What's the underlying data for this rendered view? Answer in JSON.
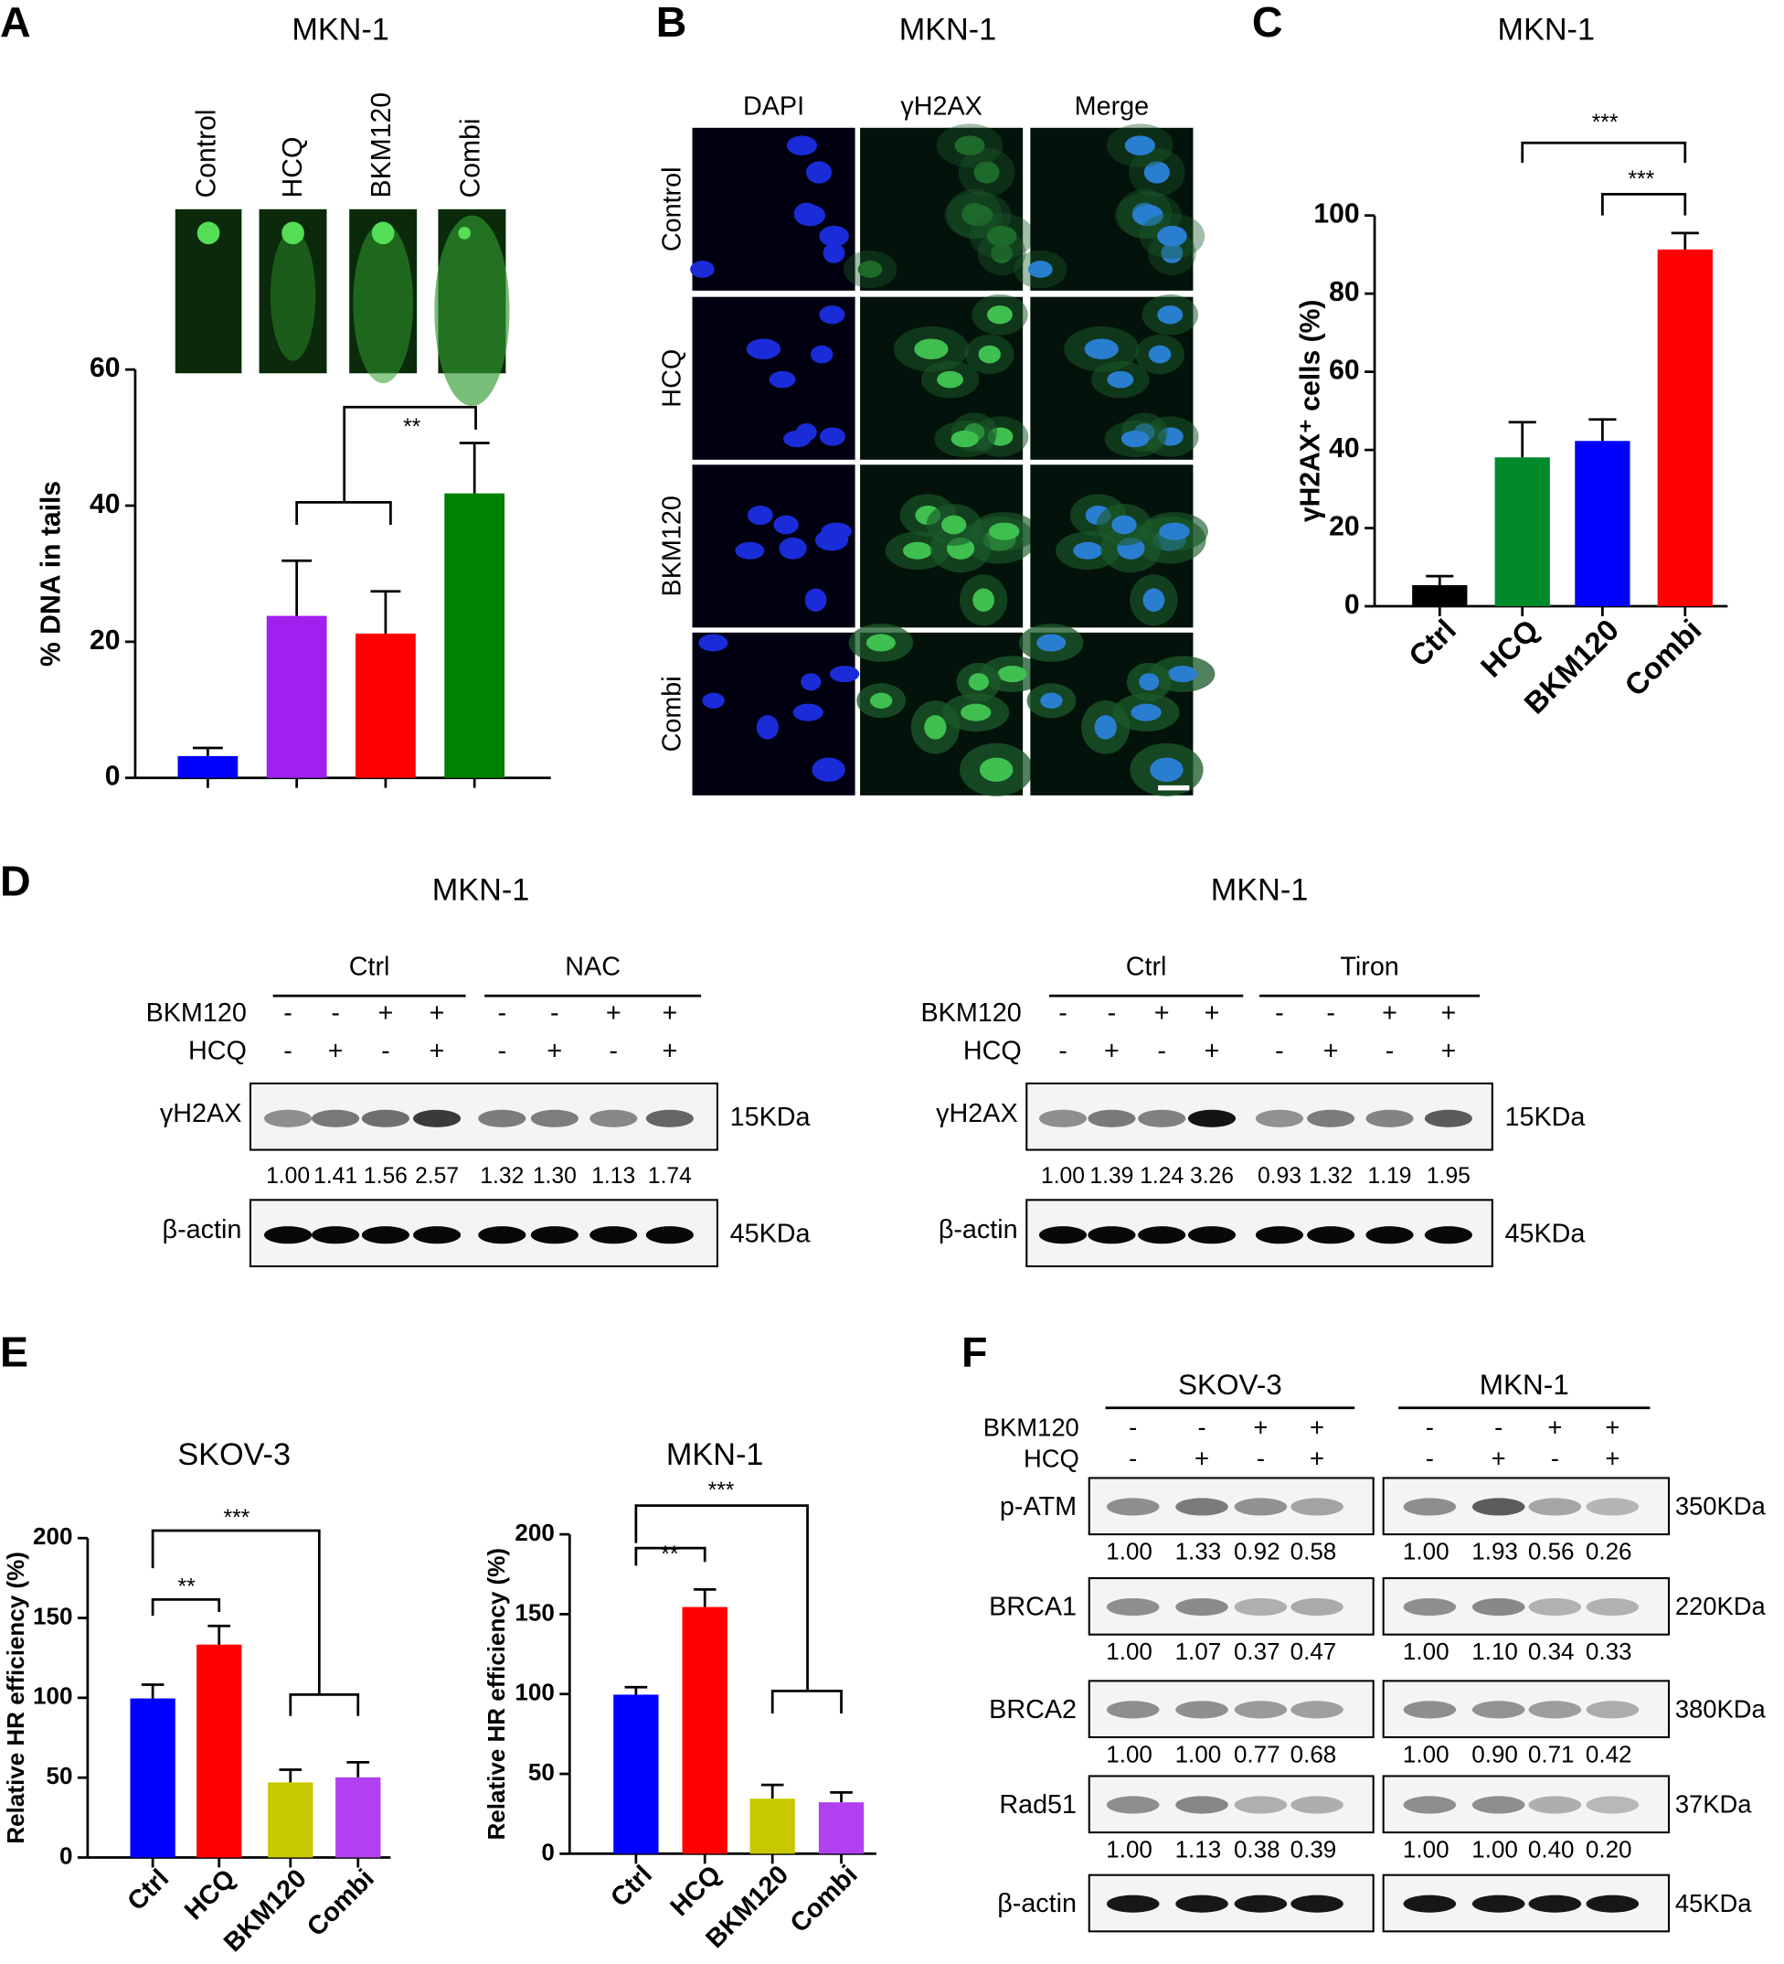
{
  "panels": {
    "a": "A",
    "b": "B",
    "c": "C",
    "d": "D",
    "e": "E",
    "f": "F"
  },
  "chart_data": [
    {
      "type": "bar",
      "title": "MKN-1",
      "ylabel": "% DNA in tails",
      "categories": [
        "Control",
        "HCQ",
        "BKM120",
        "Combi"
      ],
      "values": [
        3.2,
        23.8,
        21.2,
        41.8
      ],
      "errors": [
        1.2,
        8.1,
        6.2,
        7.4
      ],
      "colors": [
        "#0000ff",
        "#a020f0",
        "#ff0000",
        "#008000"
      ],
      "ylim": [
        0,
        60
      ],
      "yticks": [
        0,
        20,
        40,
        60
      ],
      "annotations": [
        "**"
      ]
    },
    {
      "type": "bar",
      "title": "MKN-1",
      "ylabel": "γH2AX⁺ cells (%)",
      "categories": [
        "Ctrl",
        "HCQ",
        "BKM120",
        "Combi"
      ],
      "values": [
        5.4,
        38.1,
        42.3,
        91.3
      ],
      "errors": [
        2.3,
        9.0,
        5.5,
        4.2
      ],
      "colors": [
        "#000000",
        "#008a2a",
        "#0000ff",
        "#ff0000"
      ],
      "ylim": [
        0,
        100
      ],
      "yticks": [
        0,
        20,
        40,
        60,
        80,
        100
      ],
      "annotations": [
        "***",
        "***"
      ]
    },
    {
      "type": "bar",
      "title": "SKOV-3",
      "ylabel": "Relative HR efficiency (%)",
      "categories": [
        "Ctrl",
        "HCQ",
        "BKM120",
        "Combi"
      ],
      "values": [
        99.6,
        133.3,
        47.0,
        50.2
      ],
      "errors": [
        8.6,
        11.7,
        8.0,
        9.4
      ],
      "colors": [
        "#0000ff",
        "#ff0000",
        "#c8c800",
        "#b040f0"
      ],
      "ylim": [
        0,
        200
      ],
      "yticks": [
        0,
        50,
        100,
        150,
        200
      ],
      "annotations": [
        "**",
        "***"
      ]
    },
    {
      "type": "bar",
      "title": "MKN-1",
      "ylabel": "Relative HR efficiency (%)",
      "categories": [
        "Ctrl",
        "HCQ",
        "BKM120",
        "Combi"
      ],
      "values": [
        99.6,
        154.5,
        34.5,
        32.2
      ],
      "errors": [
        4.7,
        11.0,
        8.6,
        6.2
      ],
      "colors": [
        "#0000ff",
        "#ff0000",
        "#c8c800",
        "#b040f0"
      ],
      "ylim": [
        0,
        200
      ],
      "yticks": [
        0,
        50,
        100,
        150,
        200
      ],
      "annotations": [
        "**",
        "***"
      ]
    }
  ],
  "figure_b": {
    "title": "MKN-1",
    "columns": [
      "DAPI",
      "γH2AX",
      "Merge"
    ],
    "rows": [
      "Control",
      "HCQ",
      "BKM120",
      "Combi"
    ]
  },
  "figure_d": [
    {
      "title": "MKN-1",
      "groups": [
        "Ctrl",
        "NAC"
      ],
      "treatments": [
        {
          "name": "BKM120",
          "signs": [
            "-",
            "-",
            "+",
            "+",
            "-",
            "-",
            "+",
            "+"
          ]
        },
        {
          "name": "HCQ",
          "signs": [
            "-",
            "+",
            "-",
            "+",
            "-",
            "+",
            "-",
            "+"
          ]
        }
      ],
      "blots": [
        {
          "protein": "γH2AX",
          "size": "15KDa",
          "values": [
            "1.00",
            "1.41",
            "1.56",
            "2.57",
            "1.32",
            "1.30",
            "1.13",
            "1.74"
          ]
        },
        {
          "protein": "β-actin",
          "size": "45KDa"
        }
      ]
    },
    {
      "title": "MKN-1",
      "groups": [
        "Ctrl",
        "Tiron"
      ],
      "treatments": [
        {
          "name": "BKM120",
          "signs": [
            "-",
            "-",
            "+",
            "+",
            "-",
            "-",
            "+",
            "+"
          ]
        },
        {
          "name": "HCQ",
          "signs": [
            "-",
            "+",
            "-",
            "+",
            "-",
            "+",
            "-",
            "+"
          ]
        }
      ],
      "blots": [
        {
          "protein": "γH2AX",
          "size": "15KDa",
          "values": [
            "1.00",
            "1.39",
            "1.24",
            "3.26",
            "0.93",
            "1.32",
            "1.19",
            "1.95"
          ]
        },
        {
          "protein": "β-actin",
          "size": "45KDa"
        }
      ]
    }
  ],
  "figure_f": {
    "groups": [
      "SKOV-3",
      "MKN-1"
    ],
    "treatments": [
      {
        "name": "BKM120",
        "signs": [
          "-",
          "-",
          "+",
          "+"
        ]
      },
      {
        "name": "HCQ",
        "signs": [
          "-",
          "+",
          "-",
          "+"
        ]
      }
    ],
    "blots": [
      {
        "protein": "p-ATM",
        "size": "350KDa",
        "values": [
          [
            "1.00",
            "1.33",
            "0.92",
            "0.58"
          ],
          [
            "1.00",
            "1.93",
            "0.56",
            "0.26"
          ]
        ]
      },
      {
        "protein": "BRCA1",
        "size": "220KDa",
        "values": [
          [
            "1.00",
            "1.07",
            "0.37",
            "0.47"
          ],
          [
            "1.00",
            "1.10",
            "0.34",
            "0.33"
          ]
        ]
      },
      {
        "protein": "BRCA2",
        "size": "380KDa",
        "values": [
          [
            "1.00",
            "1.00",
            "0.77",
            "0.68"
          ],
          [
            "1.00",
            "0.90",
            "0.71",
            "0.42"
          ]
        ]
      },
      {
        "protein": "Rad51",
        "size": "37KDa",
        "values": [
          [
            "1.00",
            "1.13",
            "0.38",
            "0.39"
          ],
          [
            "1.00",
            "1.00",
            "0.40",
            "0.20"
          ]
        ]
      },
      {
        "protein": "β-actin",
        "size": "45KDa"
      }
    ]
  }
}
